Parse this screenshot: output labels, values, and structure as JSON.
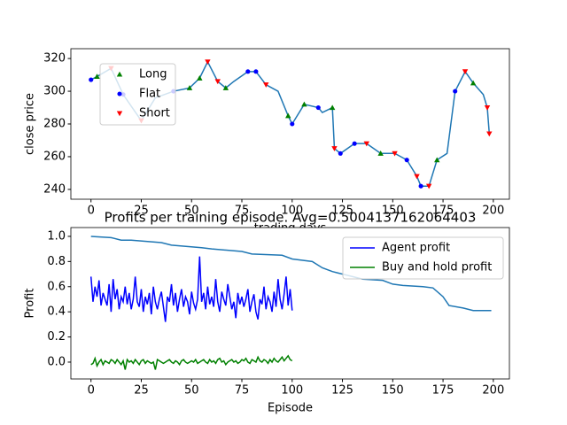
{
  "chart_data": [
    {
      "type": "line",
      "xlabel": "trading days",
      "ylabel": "close price",
      "xlim": [
        -10,
        208
      ],
      "ylim": [
        234,
        326
      ],
      "xticks": [
        0,
        25,
        50,
        75,
        100,
        125,
        150,
        175,
        200
      ],
      "yticks": [
        240,
        260,
        280,
        300,
        320
      ],
      "legend": "upper left",
      "series": [
        {
          "color": "#1f77b4",
          "marker": "none",
          "x": [
            0,
            3,
            10,
            16,
            25,
            32,
            41,
            49,
            54,
            58,
            63,
            67,
            71,
            78,
            82,
            87,
            93,
            98,
            100,
            106,
            113,
            115,
            120,
            121,
            124,
            131,
            137,
            144,
            151,
            157,
            162,
            164,
            168,
            172,
            177,
            181,
            186,
            190,
            195,
            197,
            198
          ],
          "values": [
            307,
            309,
            314,
            298,
            282,
            296,
            300,
            302,
            308,
            318,
            306,
            302,
            306,
            312,
            312,
            304,
            300,
            285,
            280,
            292,
            290,
            287,
            290,
            265,
            262,
            268,
            268,
            262,
            262,
            258,
            248,
            242,
            242,
            258,
            262,
            300,
            312,
            305,
            298,
            290,
            274
          ]
        },
        {
          "name": "Long",
          "color": "green",
          "marker": "^",
          "x": [
            3,
            49,
            54,
            67,
            98,
            106,
            120,
            144,
            172,
            190
          ],
          "values": [
            309,
            302,
            308,
            302,
            285,
            292,
            290,
            262,
            258,
            305
          ]
        },
        {
          "name": "Flat",
          "color": "blue",
          "marker": "o",
          "x": [
            0,
            16,
            41,
            78,
            82,
            100,
            113,
            124,
            131,
            157,
            164,
            181
          ],
          "values": [
            307,
            298,
            300,
            312,
            312,
            280,
            290,
            262,
            268,
            258,
            242,
            300
          ]
        },
        {
          "name": "Short",
          "color": "red",
          "marker": "v",
          "x": [
            10,
            25,
            58,
            63,
            87,
            121,
            137,
            151,
            162,
            168,
            186,
            197,
            198
          ],
          "values": [
            314,
            282,
            318,
            306,
            304,
            265,
            268,
            262,
            248,
            242,
            312,
            290,
            274
          ]
        }
      ]
    },
    {
      "type": "line",
      "title": "Profits per training episode. Avg=0.5004137162064403",
      "xlabel": "Episode",
      "ylabel": "Profit",
      "xlim": [
        -10,
        208
      ],
      "ylim": [
        -0.134,
        1.07
      ],
      "xticks": [
        0,
        25,
        50,
        75,
        100,
        125,
        150,
        175,
        200
      ],
      "yticks": [
        {
          "value": 0,
          "label": "0.0"
        },
        {
          "value": 0.2,
          "label": "0.2"
        },
        {
          "value": 0.4,
          "label": "0.4"
        },
        {
          "value": 0.6,
          "label": "0.6"
        },
        {
          "value": 0.8,
          "label": "0.8"
        },
        {
          "value": 1,
          "label": "1.0"
        }
      ],
      "legend": "upper right",
      "series": [
        {
          "name": "Agent profit",
          "color": "blue",
          "marker": "none",
          "x": [
            0,
            1,
            2,
            3,
            4,
            5,
            6,
            7,
            8,
            9,
            10,
            11,
            12,
            13,
            14,
            15,
            16,
            17,
            18,
            19,
            20,
            21,
            22,
            23,
            24,
            25,
            26,
            27,
            28,
            29,
            30,
            31,
            32,
            33,
            34,
            35,
            36,
            37,
            38,
            39,
            40,
            41,
            42,
            43,
            44,
            45,
            46,
            47,
            48,
            49,
            50,
            51,
            52,
            53,
            54,
            55,
            56,
            57,
            58,
            59,
            60,
            61,
            62,
            63,
            64,
            65,
            66,
            67,
            68,
            69,
            70,
            71,
            72,
            73,
            74,
            75,
            76,
            77,
            78,
            79,
            80,
            81,
            82,
            83,
            84,
            85,
            86,
            87,
            88,
            89,
            90,
            91,
            92,
            93,
            94,
            95,
            96,
            97,
            98,
            99,
            100
          ],
          "values": [
            0.68,
            0.48,
            0.6,
            0.52,
            0.65,
            0.45,
            0.55,
            0.5,
            0.45,
            0.62,
            0.4,
            0.66,
            0.5,
            0.58,
            0.42,
            0.52,
            0.48,
            0.6,
            0.46,
            0.55,
            0.42,
            0.5,
            0.68,
            0.48,
            0.44,
            0.58,
            0.4,
            0.52,
            0.46,
            0.55,
            0.38,
            0.6,
            0.48,
            0.42,
            0.5,
            0.56,
            0.44,
            0.32,
            0.52,
            0.48,
            0.62,
            0.45,
            0.55,
            0.4,
            0.5,
            0.58,
            0.44,
            0.52,
            0.48,
            0.38,
            0.56,
            0.47,
            0.42,
            0.5,
            0.84,
            0.48,
            0.55,
            0.42,
            0.6,
            0.46,
            0.52,
            0.44,
            0.66,
            0.48,
            0.4,
            0.56,
            0.5,
            0.45,
            0.62,
            0.52,
            0.42,
            0.48,
            0.35,
            0.55,
            0.46,
            0.52,
            0.44,
            0.5,
            0.58,
            0.4,
            0.48,
            0.54,
            0.4,
            0.34,
            0.5,
            0.46,
            0.6,
            0.42,
            0.52,
            0.48,
            0.4,
            0.56,
            0.44,
            0.66,
            0.5,
            0.42,
            0.54,
            0.68,
            0.45,
            0.58,
            0.41
          ]
        },
        {
          "name": "Buy and hold profit",
          "color": "green",
          "marker": "none",
          "x": [
            0,
            1,
            2,
            3,
            4,
            5,
            6,
            7,
            8,
            9,
            10,
            11,
            12,
            13,
            14,
            15,
            16,
            17,
            18,
            19,
            20,
            21,
            22,
            23,
            24,
            25,
            26,
            27,
            28,
            29,
            30,
            31,
            32,
            33,
            34,
            35,
            36,
            37,
            38,
            39,
            40,
            41,
            42,
            43,
            44,
            45,
            46,
            47,
            48,
            49,
            50,
            51,
            52,
            53,
            54,
            55,
            56,
            57,
            58,
            59,
            60,
            61,
            62,
            63,
            64,
            65,
            66,
            67,
            68,
            69,
            70,
            71,
            72,
            73,
            74,
            75,
            76,
            77,
            78,
            79,
            80,
            81,
            82,
            83,
            84,
            85,
            86,
            87,
            88,
            89,
            90,
            91,
            92,
            93,
            94,
            95,
            96,
            97,
            98,
            99,
            100
          ],
          "values": [
            -0.02,
            -0.01,
            0.03,
            -0.03,
            0.0,
            0.02,
            -0.02,
            0.01,
            0.0,
            -0.01,
            0.02,
            0.01,
            -0.01,
            0.02,
            0.0,
            -0.02,
            0.01,
            -0.06,
            0.02,
            0.0,
            0.01,
            -0.01,
            0.02,
            0.0,
            -0.02,
            0.01,
            0.02,
            -0.01,
            0.01,
            0.0,
            -0.01,
            0.0,
            -0.06,
            0.02,
            0.01,
            0.0,
            -0.01,
            0.0,
            0.01,
            0.02,
            0.0,
            -0.01,
            0.01,
            0.0,
            -0.02,
            0.01,
            0.02,
            0.0,
            -0.01,
            0.0,
            0.01,
            0.0,
            0.02,
            -0.01,
            0.0,
            0.01,
            0.02,
            0.0,
            -0.01,
            0.02,
            0.0,
            0.01,
            -0.01,
            0.02,
            0.03,
            0.0,
            0.01,
            -0.02,
            0.0,
            0.01,
            0.02,
            0.0,
            0.01,
            -0.01,
            0.0,
            0.02,
            0.01,
            0.03,
            0.0,
            -0.01,
            0.02,
            0.01,
            0.0,
            0.04,
            0.01,
            0.0,
            0.02,
            0.01,
            -0.01,
            0.02,
            0.0,
            0.03,
            0.01,
            0.0,
            0.02,
            0.04,
            0.01,
            0.03,
            0.05,
            0.02,
            0.01
          ]
        },
        {
          "color": "#1f77b4",
          "marker": "none",
          "x": [
            0,
            10,
            15,
            20,
            35,
            40,
            55,
            60,
            75,
            80,
            95,
            100,
            110,
            115,
            120,
            125,
            130,
            135,
            145,
            150,
            155,
            165,
            170,
            175,
            178,
            185,
            190,
            199
          ],
          "values": [
            1.0,
            0.99,
            0.97,
            0.97,
            0.95,
            0.93,
            0.91,
            0.9,
            0.88,
            0.86,
            0.85,
            0.82,
            0.8,
            0.75,
            0.72,
            0.7,
            0.68,
            0.66,
            0.65,
            0.62,
            0.61,
            0.6,
            0.59,
            0.52,
            0.45,
            0.43,
            0.41,
            0.41
          ]
        }
      ]
    }
  ]
}
